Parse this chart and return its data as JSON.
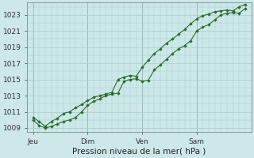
{
  "background_color": "#cce8e8",
  "grid_color": "#aacccc",
  "line_color": "#2d6a2d",
  "marker_color": "#2d6a2d",
  "title": "Pression niveau de la mer( hPa )",
  "ylim": [
    1008.5,
    1024.5
  ],
  "yticks": [
    1009,
    1011,
    1013,
    1015,
    1017,
    1019,
    1021,
    1023
  ],
  "x_labels": [
    "Jeu",
    "Dim",
    "Ven",
    "Sam"
  ],
  "x_tick_positions": [
    0,
    27,
    54,
    81
  ],
  "x_vline_positions": [
    0,
    27,
    54,
    81
  ],
  "xlim": [
    -3,
    108
  ],
  "series1_x": [
    0,
    3,
    6,
    9,
    12,
    15,
    18,
    21,
    24,
    27,
    30,
    33,
    36,
    39,
    42,
    45,
    48,
    51,
    54,
    57,
    60,
    63,
    66,
    69,
    72,
    75,
    78,
    81,
    84,
    87,
    90,
    93,
    96,
    99,
    102,
    105
  ],
  "series1_y": [
    1010.0,
    1009.3,
    1009.0,
    1009.2,
    1009.5,
    1009.8,
    1010.0,
    1010.3,
    1011.0,
    1011.8,
    1012.3,
    1012.6,
    1013.0,
    1013.2,
    1013.3,
    1014.8,
    1015.0,
    1015.1,
    1014.8,
    1014.9,
    1016.2,
    1016.8,
    1017.5,
    1018.2,
    1018.8,
    1019.2,
    1019.8,
    1021.0,
    1021.5,
    1021.8,
    1022.4,
    1023.0,
    1023.2,
    1023.3,
    1023.2,
    1023.8
  ],
  "series2_x": [
    0,
    3,
    6,
    9,
    12,
    15,
    18,
    21,
    24,
    27,
    30,
    33,
    36,
    39,
    42,
    45,
    48,
    51,
    54,
    57,
    60,
    63,
    66,
    69,
    72,
    75,
    78,
    81,
    84,
    87,
    90,
    93,
    96,
    99,
    102,
    105
  ],
  "series2_y": [
    1010.3,
    1009.8,
    1009.2,
    1009.8,
    1010.2,
    1010.8,
    1011.0,
    1011.5,
    1011.9,
    1012.4,
    1012.8,
    1013.0,
    1013.2,
    1013.4,
    1015.0,
    1015.3,
    1015.5,
    1015.4,
    1016.5,
    1017.4,
    1018.2,
    1018.8,
    1019.5,
    1020.0,
    1020.6,
    1021.2,
    1021.9,
    1022.5,
    1022.9,
    1023.1,
    1023.4,
    1023.5,
    1023.6,
    1023.5,
    1024.0,
    1024.3
  ]
}
